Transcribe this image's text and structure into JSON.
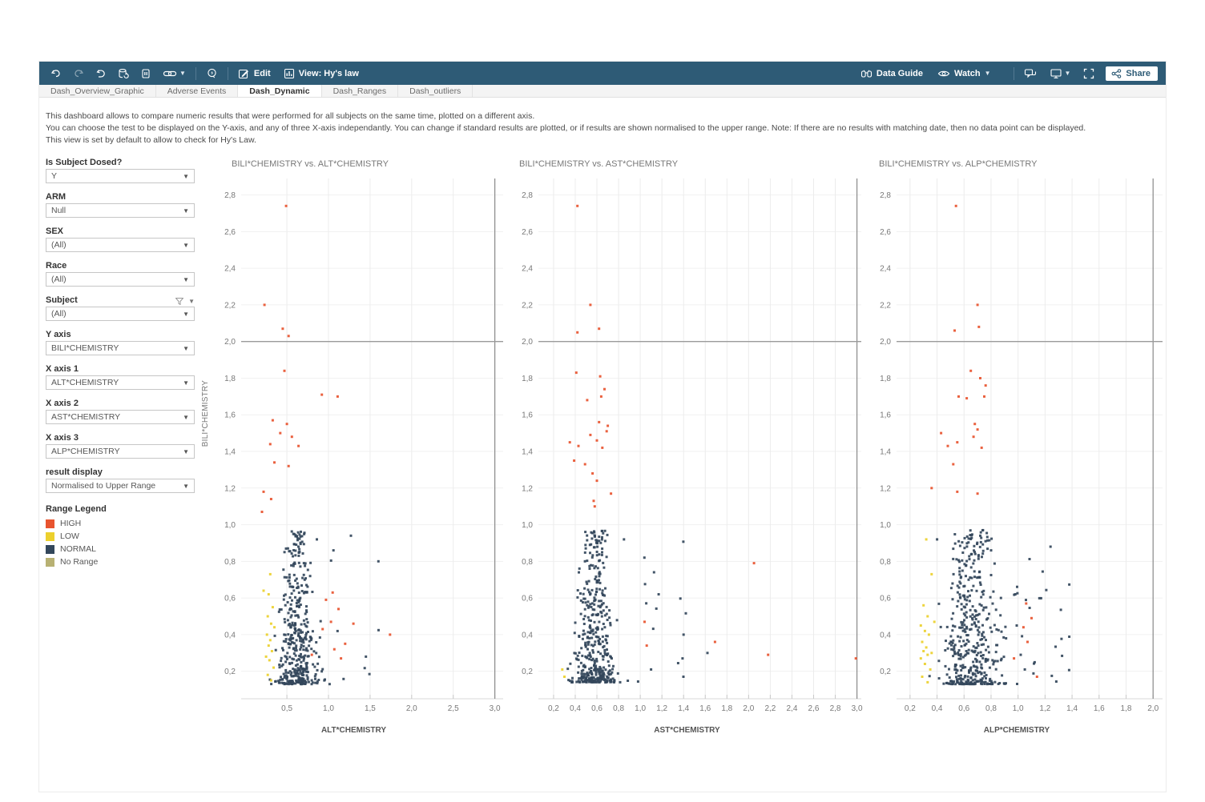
{
  "header": {
    "edit_label": "Edit",
    "view_label": "View: Hy's law",
    "data_guide_label": "Data Guide",
    "watch_label": "Watch",
    "share_label": "Share"
  },
  "tabs": [
    {
      "label": "Dash_Overview_Graphic",
      "active": false
    },
    {
      "label": "Adverse Events",
      "active": false
    },
    {
      "label": "Dash_Dynamic",
      "active": true
    },
    {
      "label": "Dash_Ranges",
      "active": false
    },
    {
      "label": "Dash_outliers",
      "active": false
    }
  ],
  "description": [
    "This dashboard allows to compare numeric results that were performed for all subjects on the same time, plotted on a different axis.",
    "You can choose the test to be displayed on the Y-axis, and any of three X-axis independantly. You can change if standard results are plotted, or if results are shown normalised to the upper range. Note: If there are no results with matching date, then no data point can be displayed.",
    "This view is set by default to allow to check for Hy's Law."
  ],
  "sidebar": {
    "filters": [
      {
        "label": "Is Subject Dosed?",
        "value": "Y",
        "has_filter_icon": false
      },
      {
        "label": "ARM",
        "value": "Null",
        "has_filter_icon": false
      },
      {
        "label": "SEX",
        "value": "(All)",
        "has_filter_icon": false
      },
      {
        "label": "Race",
        "value": "(All)",
        "has_filter_icon": false
      },
      {
        "label": "Subject",
        "value": "(All)",
        "has_filter_icon": true
      },
      {
        "label": "Y axis",
        "value": "BILI*CHEMISTRY",
        "has_filter_icon": false
      },
      {
        "label": "X axis 1",
        "value": "ALT*CHEMISTRY",
        "has_filter_icon": false
      },
      {
        "label": "X axis 2",
        "value": "AST*CHEMISTRY",
        "has_filter_icon": false
      },
      {
        "label": "X axis 3",
        "value": "ALP*CHEMISTRY",
        "has_filter_icon": false
      },
      {
        "label": "result display",
        "value": "Normalised to Upper Range",
        "has_filter_icon": false
      }
    ],
    "legend": {
      "title": "Range Legend",
      "items": [
        {
          "label": "HIGH",
          "color": "#e8542f"
        },
        {
          "label": "LOW",
          "color": "#ecd02d"
        },
        {
          "label": "NORMAL",
          "color": "#33475b"
        },
        {
          "label": "No Range",
          "color": "#b8b173"
        }
      ]
    }
  },
  "chart_data": [
    {
      "type": "scatter",
      "title": "BILI*CHEMISTRY vs. ALT*CHEMISTRY",
      "xlabel": "ALT*CHEMISTRY",
      "ylabel": "BILI*CHEMISTRY",
      "xlim": [
        -0.05,
        3.1
      ],
      "ylim": [
        0.05,
        2.89
      ],
      "x_ticks": [
        0.5,
        1.0,
        1.5,
        2.0,
        2.5,
        3.0
      ],
      "y_ticks": [
        0.2,
        0.4,
        0.6,
        0.8,
        1.0,
        1.2,
        1.4,
        1.6,
        1.8,
        2.0,
        2.2,
        2.4,
        2.6,
        2.8
      ],
      "ref_line_y": 2.0,
      "right_border_x": 3.0,
      "grid": true,
      "series": [
        {
          "name": "NORMAL",
          "color": "#33475b",
          "cluster": {
            "seed": 7,
            "n": 430,
            "x_center": 0.62,
            "x_spread": 0.38,
            "x_min": 0.27,
            "shrink": 0.55,
            "tail_p": 0.05,
            "tail_len": 0.9,
            "y_min": 0.13,
            "y_max": 0.97,
            "y_pow": 2.0
          },
          "points": [
            [
              1.6,
              0.8
            ],
            [
              1.27,
              0.94
            ],
            [
              0.86,
              0.92
            ],
            [
              1.06,
              0.86
            ],
            [
              1.45,
              0.28
            ],
            [
              0.95,
              0.15
            ]
          ]
        },
        {
          "name": "LOW",
          "color": "#ecd02d",
          "points": [
            [
              0.3,
              0.73
            ],
            [
              0.22,
              0.64
            ],
            [
              0.28,
              0.62
            ],
            [
              0.33,
              0.55
            ],
            [
              0.27,
              0.5
            ],
            [
              0.31,
              0.46
            ],
            [
              0.35,
              0.44
            ],
            [
              0.26,
              0.4
            ],
            [
              0.3,
              0.37
            ],
            [
              0.28,
              0.34
            ],
            [
              0.32,
              0.31
            ],
            [
              0.25,
              0.28
            ],
            [
              0.29,
              0.26
            ],
            [
              0.34,
              0.22
            ],
            [
              0.27,
              0.18
            ],
            [
              0.31,
              0.15
            ]
          ]
        },
        {
          "name": "HIGH",
          "color": "#e8542f",
          "points": [
            [
              0.49,
              2.74
            ],
            [
              0.23,
              2.2
            ],
            [
              0.45,
              2.07
            ],
            [
              0.52,
              2.03
            ],
            [
              0.47,
              1.84
            ],
            [
              0.92,
              1.71
            ],
            [
              1.11,
              1.7
            ],
            [
              0.33,
              1.57
            ],
            [
              0.5,
              1.55
            ],
            [
              0.42,
              1.5
            ],
            [
              0.56,
              1.48
            ],
            [
              0.3,
              1.44
            ],
            [
              0.64,
              1.43
            ],
            [
              0.35,
              1.34
            ],
            [
              0.52,
              1.32
            ],
            [
              0.22,
              1.18
            ],
            [
              0.31,
              1.14
            ],
            [
              0.2,
              1.07
            ],
            [
              1.05,
              0.63
            ],
            [
              0.97,
              0.59
            ],
            [
              1.12,
              0.54
            ],
            [
              1.03,
              0.47
            ],
            [
              1.3,
              0.46
            ],
            [
              0.93,
              0.43
            ],
            [
              1.74,
              0.4
            ],
            [
              1.2,
              0.35
            ],
            [
              1.07,
              0.32
            ],
            [
              0.8,
              0.29
            ],
            [
              1.15,
              0.27
            ]
          ]
        }
      ]
    },
    {
      "type": "scatter",
      "title": "BILI*CHEMISTRY vs. AST*CHEMISTRY",
      "xlabel": "AST*CHEMISTRY",
      "ylabel": "",
      "xlim": [
        0.06,
        3.04
      ],
      "ylim": [
        0.05,
        2.89
      ],
      "x_ticks": [
        0.2,
        0.4,
        0.6,
        0.8,
        1.0,
        1.2,
        1.4,
        1.6,
        1.8,
        2.0,
        2.2,
        2.4,
        2.6,
        2.8,
        3.0
      ],
      "y_ticks": [
        0.2,
        0.4,
        0.6,
        0.8,
        1.0,
        1.2,
        1.4,
        1.6,
        1.8,
        2.0,
        2.2,
        2.4,
        2.6,
        2.8
      ],
      "ref_line_y": 2.0,
      "right_border_x": 3.0,
      "grid": true,
      "series": [
        {
          "name": "NORMAL",
          "color": "#33475b",
          "cluster": {
            "seed": 11,
            "n": 440,
            "x_center": 0.58,
            "x_spread": 0.3,
            "x_min": 0.25,
            "shrink": 0.5,
            "tail_p": 0.05,
            "tail_len": 0.7,
            "y_min": 0.14,
            "y_max": 0.97,
            "y_pow": 2.0
          },
          "points": [
            [
              1.17,
              0.62
            ],
            [
              1.4,
              0.4
            ],
            [
              1.39,
              0.27
            ],
            [
              1.1,
              0.21
            ],
            [
              0.85,
              0.92
            ],
            [
              1.62,
              0.3
            ]
          ]
        },
        {
          "name": "LOW",
          "color": "#ecd02d",
          "points": [
            [
              0.3,
              0.17
            ],
            [
              0.28,
              0.21
            ]
          ]
        },
        {
          "name": "HIGH",
          "color": "#e8542f",
          "points": [
            [
              0.42,
              2.74
            ],
            [
              0.54,
              2.2
            ],
            [
              0.42,
              2.05
            ],
            [
              0.62,
              2.07
            ],
            [
              0.41,
              1.83
            ],
            [
              0.63,
              1.81
            ],
            [
              0.67,
              1.74
            ],
            [
              0.51,
              1.68
            ],
            [
              0.64,
              1.7
            ],
            [
              0.62,
              1.56
            ],
            [
              0.7,
              1.54
            ],
            [
              0.69,
              1.51
            ],
            [
              0.54,
              1.49
            ],
            [
              0.35,
              1.45
            ],
            [
              0.6,
              1.46
            ],
            [
              0.43,
              1.43
            ],
            [
              0.65,
              1.42
            ],
            [
              0.39,
              1.35
            ],
            [
              0.49,
              1.33
            ],
            [
              0.56,
              1.28
            ],
            [
              0.6,
              1.24
            ],
            [
              0.57,
              1.13
            ],
            [
              0.58,
              1.1
            ],
            [
              0.73,
              1.17
            ],
            [
              2.05,
              0.79
            ],
            [
              1.04,
              0.47
            ],
            [
              1.06,
              0.34
            ],
            [
              1.69,
              0.36
            ],
            [
              2.18,
              0.29
            ],
            [
              2.99,
              0.27
            ]
          ]
        }
      ]
    },
    {
      "type": "scatter",
      "title": "BILI*CHEMISTRY vs. ALP*CHEMISTRY",
      "xlabel": "ALP*CHEMISTRY",
      "ylabel": "",
      "xlim": [
        0.1,
        2.07
      ],
      "ylim": [
        0.05,
        2.89
      ],
      "x_ticks": [
        0.2,
        0.4,
        0.6,
        0.8,
        1.0,
        1.2,
        1.4,
        1.6,
        1.8,
        2.0
      ],
      "y_ticks": [
        0.2,
        0.4,
        0.6,
        0.8,
        1.0,
        1.2,
        1.4,
        1.6,
        1.8,
        2.0,
        2.2,
        2.4,
        2.6,
        2.8
      ],
      "ref_line_y": 2.0,
      "right_border_x": 2.0,
      "grid": true,
      "series": [
        {
          "name": "NORMAL",
          "color": "#33475b",
          "cluster": {
            "seed": 23,
            "n": 470,
            "x_center": 0.66,
            "x_spread": 0.34,
            "x_min": 0.3,
            "shrink": 0.45,
            "tail_p": 0.06,
            "tail_len": 0.55,
            "y_min": 0.13,
            "y_max": 0.97,
            "y_pow": 1.9
          },
          "points": [
            [
              0.98,
              0.62
            ],
            [
              0.99,
              0.45
            ],
            [
              1.05,
              0.21
            ],
            [
              1.02,
              0.29
            ],
            [
              0.74,
              0.97
            ],
            [
              0.4,
              0.92
            ]
          ]
        },
        {
          "name": "LOW",
          "color": "#ecd02d",
          "points": [
            [
              0.32,
              0.92
            ],
            [
              0.36,
              0.73
            ],
            [
              0.3,
              0.56
            ],
            [
              0.33,
              0.5
            ],
            [
              0.28,
              0.45
            ],
            [
              0.31,
              0.42
            ],
            [
              0.34,
              0.4
            ],
            [
              0.29,
              0.36
            ],
            [
              0.32,
              0.33
            ],
            [
              0.3,
              0.31
            ],
            [
              0.33,
              0.29
            ],
            [
              0.28,
              0.27
            ],
            [
              0.31,
              0.24
            ],
            [
              0.35,
              0.21
            ],
            [
              0.29,
              0.17
            ],
            [
              0.33,
              0.14
            ],
            [
              0.38,
              0.47
            ],
            [
              0.36,
              0.3
            ]
          ]
        },
        {
          "name": "HIGH",
          "color": "#e8542f",
          "points": [
            [
              0.54,
              2.74
            ],
            [
              0.7,
              2.2
            ],
            [
              0.53,
              2.06
            ],
            [
              0.71,
              2.08
            ],
            [
              0.65,
              1.84
            ],
            [
              0.72,
              1.8
            ],
            [
              0.76,
              1.76
            ],
            [
              0.56,
              1.7
            ],
            [
              0.62,
              1.69
            ],
            [
              0.75,
              1.7
            ],
            [
              0.68,
              1.55
            ],
            [
              0.7,
              1.52
            ],
            [
              0.67,
              1.48
            ],
            [
              0.55,
              1.45
            ],
            [
              0.48,
              1.43
            ],
            [
              0.73,
              1.42
            ],
            [
              0.43,
              1.5
            ],
            [
              0.52,
              1.33
            ],
            [
              0.36,
              1.2
            ],
            [
              0.55,
              1.18
            ],
            [
              0.7,
              1.17
            ],
            [
              1.06,
              0.57
            ],
            [
              1.1,
              0.49
            ],
            [
              1.04,
              0.44
            ],
            [
              1.07,
              0.36
            ],
            [
              1.14,
              0.17
            ],
            [
              0.97,
              0.27
            ]
          ]
        }
      ]
    }
  ]
}
